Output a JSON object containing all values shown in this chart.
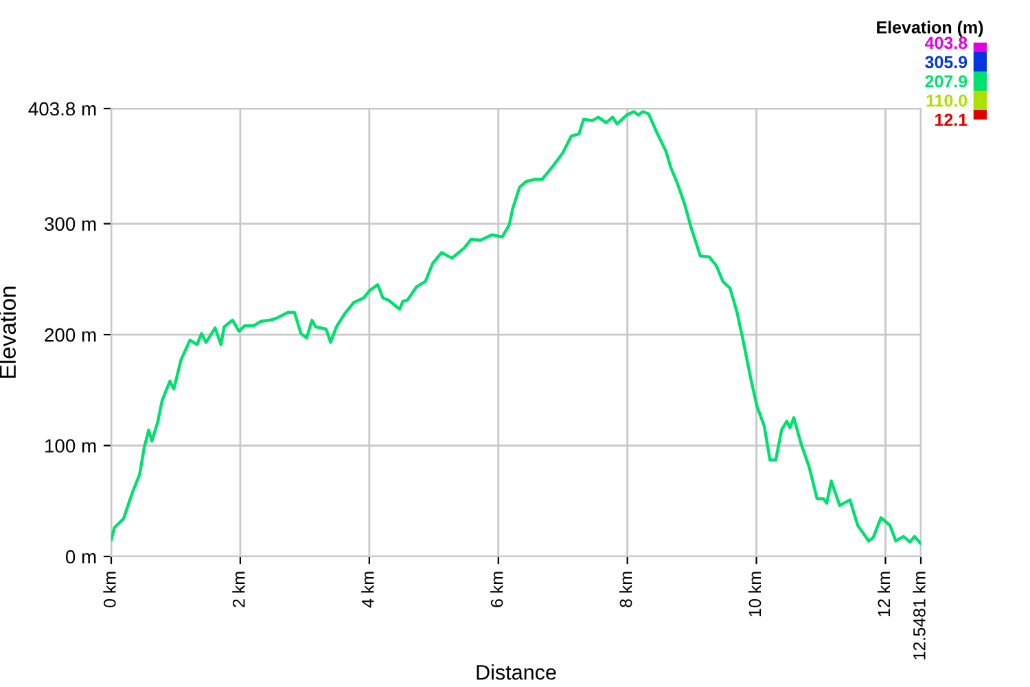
{
  "chart_data": {
    "type": "line",
    "xlabel": "Distance",
    "ylabel": "Elevation",
    "clabel": "Elevation (m)",
    "x": [
      0,
      0.05,
      0.19,
      0.26,
      0.33,
      0.44,
      0.51,
      0.58,
      0.63,
      0.72,
      0.79,
      0.91,
      0.97,
      1.08,
      1.22,
      1.33,
      1.4,
      1.47,
      1.61,
      1.7,
      1.75,
      1.88,
      1.98,
      2.07,
      2.21,
      2.32,
      2.46,
      2.57,
      2.74,
      2.84,
      2.94,
      3.03,
      3.11,
      3.17,
      3.33,
      3.4,
      3.49,
      3.62,
      3.76,
      3.91,
      4.01,
      4.13,
      4.21,
      4.3,
      4.47,
      4.52,
      4.59,
      4.73,
      4.87,
      4.98,
      5.12,
      5.28,
      5.47,
      5.58,
      5.72,
      5.9,
      6.06,
      6.17,
      6.22,
      6.33,
      6.43,
      6.57,
      6.68,
      6.86,
      7.0,
      7.13,
      7.25,
      7.32,
      7.46,
      7.55,
      7.67,
      7.77,
      7.84,
      7.99,
      8.1,
      8.17,
      8.24,
      8.33,
      8.45,
      8.6,
      8.67,
      8.77,
      8.88,
      8.99,
      9.13,
      9.27,
      9.38,
      9.48,
      9.59,
      9.7,
      9.8,
      9.91,
      10.01,
      10.12,
      10.21,
      10.3,
      10.39,
      10.47,
      10.52,
      10.58,
      10.69,
      10.82,
      10.94,
      11.04,
      11.09,
      11.16,
      11.29,
      11.45,
      11.57,
      11.74,
      11.81,
      11.93,
      12.07,
      12.16,
      12.28,
      12.38,
      12.45,
      12.54
    ],
    "values": [
      15,
      26,
      34,
      46,
      58,
      74,
      98,
      114,
      104,
      121,
      141,
      158,
      151,
      177,
      195,
      191,
      201,
      193,
      206,
      191,
      207,
      213,
      203,
      208,
      208,
      212,
      213,
      215,
      220,
      220,
      201,
      197,
      213,
      207,
      205,
      193,
      207,
      219,
      229,
      233,
      240,
      245,
      233,
      231,
      223,
      230,
      231,
      243,
      248,
      264,
      274,
      269,
      278,
      286,
      285,
      290,
      288,
      299,
      313,
      333,
      338,
      340,
      340,
      353,
      364,
      379,
      381,
      394,
      393,
      396,
      391,
      396,
      390,
      398,
      401,
      398,
      401,
      399,
      383,
      365,
      351,
      337,
      319,
      296,
      271,
      270,
      262,
      248,
      242,
      220,
      193,
      161,
      135,
      118,
      87,
      87,
      114,
      122,
      116,
      125,
      102,
      80,
      52,
      52,
      48,
      68,
      46,
      51,
      28,
      14,
      17,
      35,
      28,
      14,
      18,
      13,
      18,
      12
    ],
    "clim": [
      12.1,
      403.8
    ],
    "cticks": [
      403.8,
      305.9,
      207.9,
      {
        "value": 110,
        "label": "110.0"
      },
      12.1
    ],
    "xlim": [
      0,
      12.5481
    ],
    "xticks": [
      {
        "value": 0,
        "label": "0 km"
      },
      {
        "value": 2,
        "label": "2 km"
      },
      {
        "value": 4,
        "label": "4 km"
      },
      {
        "value": 6,
        "label": "6 km"
      },
      {
        "value": 8,
        "label": "8 km"
      },
      {
        "value": 10,
        "label": "10 km"
      },
      {
        "value": 12,
        "label": "12 km"
      },
      {
        "value": 12.5481,
        "label": "12.5481 km"
      }
    ],
    "ylim": [
      0,
      403.8
    ],
    "yticks": [
      {
        "value": 0,
        "label": "0 m"
      },
      {
        "value": 100,
        "label": "100 m"
      },
      {
        "value": 200,
        "label": "200 m"
      },
      {
        "value": 300,
        "label": "300 m"
      },
      {
        "value": 403.8,
        "label": "403.8 m"
      }
    ],
    "grid": true
  }
}
